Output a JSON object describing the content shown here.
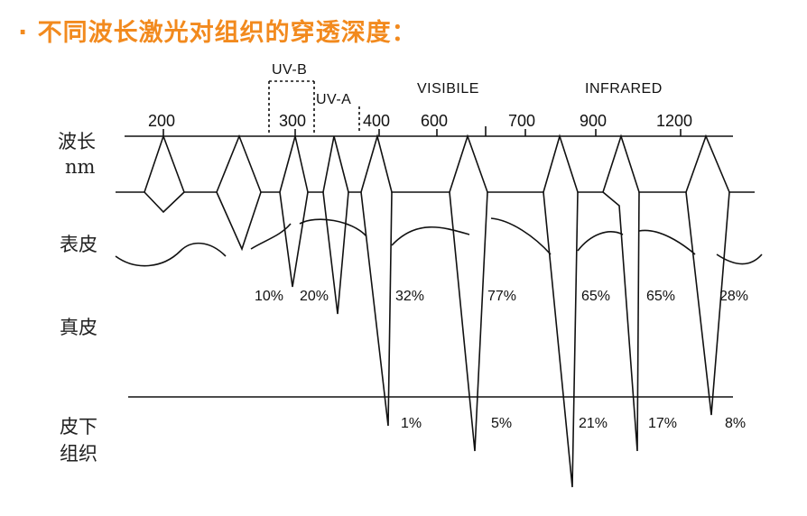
{
  "title": "· 不同波长激光对组织的穿透深度：",
  "labels": {
    "wavelength": "波长",
    "unit": "nm",
    "epidermis": "表皮",
    "dermis": "真皮",
    "subcutis_1": "皮下",
    "subcutis_2": "组织"
  },
  "bands": {
    "uvb": "UV-B",
    "uva": "UV-A",
    "visible": "VISIBILE",
    "infrared": "INFRARED"
  },
  "ticks": [
    "200",
    "300",
    "400",
    "600",
    "700",
    "900",
    "1200"
  ],
  "percent_dermis": [
    "10%",
    "20%",
    "32%",
    "77%",
    "65%",
    "65%",
    "28%"
  ],
  "percent_subcutis": [
    "1%",
    "5%",
    "21%",
    "17%",
    "8%"
  ],
  "colors": {
    "title": "#f28a1e",
    "line": "#111111"
  }
}
